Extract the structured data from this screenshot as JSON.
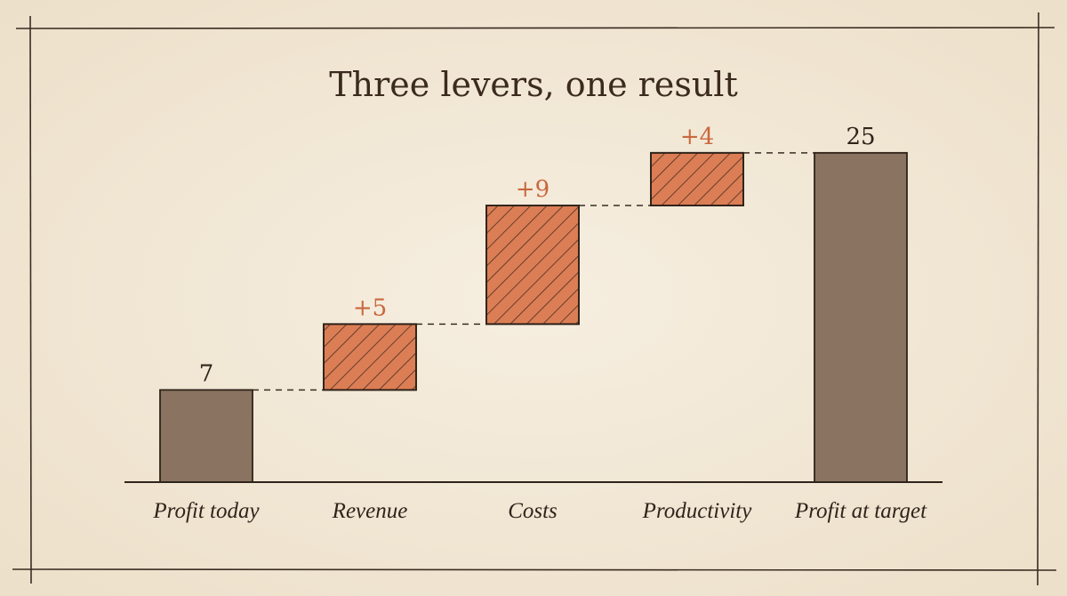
{
  "chart_data": {
    "type": "bar",
    "subtype": "waterfall",
    "title": "Three levers, one result",
    "categories": [
      "Profit today",
      "Revenue",
      "Costs",
      "Productivity",
      "Profit at target"
    ],
    "values": [
      7,
      5,
      9,
      4,
      25
    ],
    "kinds": [
      "total",
      "delta",
      "delta",
      "delta",
      "total"
    ],
    "value_labels": [
      "7",
      "+5",
      "+9",
      "+4",
      "25"
    ],
    "xlabel": "",
    "ylabel": "",
    "ylim": [
      0,
      28.5
    ],
    "grid": false,
    "legend": "none",
    "connectors": true
  },
  "colors": {
    "background": "#f3ead9",
    "frame": "#3a2c22",
    "total_fill": "#8a7461",
    "delta_fill": "#db7e55",
    "hatch": "#4a2c1c",
    "bar_outline": "#2e2219",
    "delta_label": "#c9683e",
    "total_label": "#2f241b",
    "title": "#3b2a1e",
    "axis": "#2f241b"
  }
}
